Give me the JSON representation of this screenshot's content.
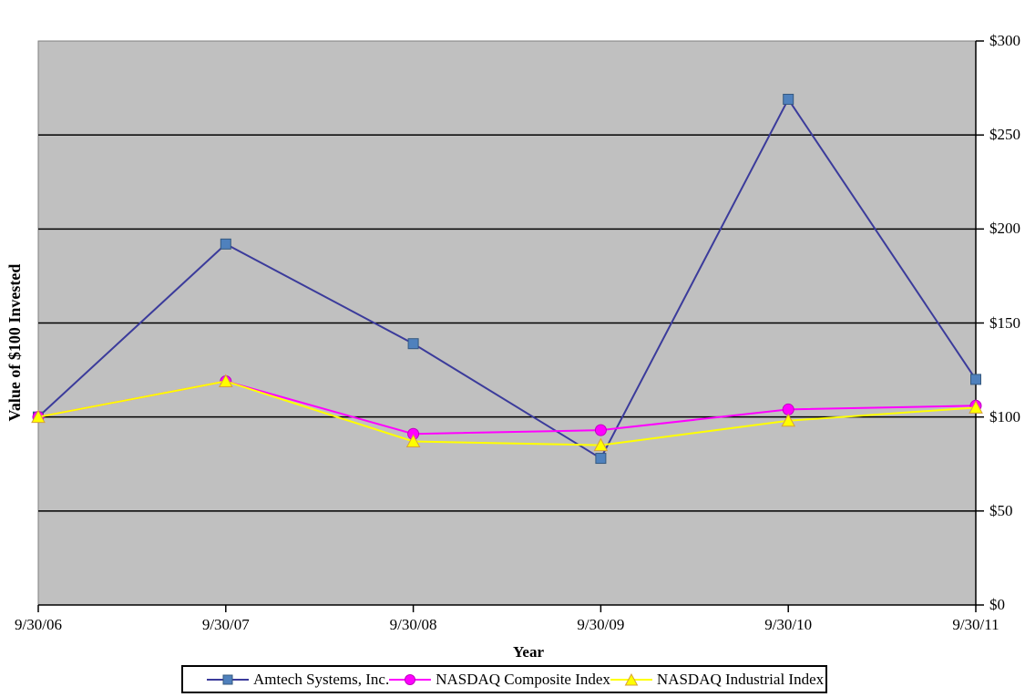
{
  "chart_data": {
    "type": "line",
    "title": "",
    "xlabel": "Year",
    "ylabel": "Value of $100 Invested",
    "categories": [
      "9/30/06",
      "9/30/07",
      "9/30/08",
      "9/30/09",
      "9/30/10",
      "9/30/11"
    ],
    "series": [
      {
        "name": "Amtech Systems, Inc.",
        "marker": "square",
        "line_color": "#3B3B9B",
        "marker_color": "#4F81BD",
        "marker_edge": "#35597F",
        "values": [
          100,
          192,
          139,
          78,
          269,
          120
        ]
      },
      {
        "name": "NASDAQ Composite Index",
        "marker": "circle",
        "line_color": "#FF00FF",
        "marker_color": "#FF00FF",
        "marker_edge": "#BF00BF",
        "values": [
          100,
          119,
          91,
          93,
          104,
          106
        ]
      },
      {
        "name": "NASDAQ Industrial Index",
        "marker": "triangle",
        "line_color": "#FFFF00",
        "marker_color": "#FFFF00",
        "marker_edge": "#D6A03C",
        "values": [
          100,
          119,
          87,
          85,
          98,
          105
        ]
      }
    ],
    "y_ticks": [
      "$300",
      "$250",
      "$200",
      "$150",
      "$100",
      "$50",
      "$0"
    ],
    "y_tick_values": [
      300,
      250,
      200,
      150,
      100,
      50,
      0
    ],
    "ylim": [
      0,
      300
    ],
    "grid": true,
    "plot_bg": "#C0C0C0",
    "plot_border_color": "#7F7F7F",
    "gridline_color": "#000000",
    "axis_color": "#000000",
    "legend_position": "bottom",
    "y_axis_side": "right"
  }
}
